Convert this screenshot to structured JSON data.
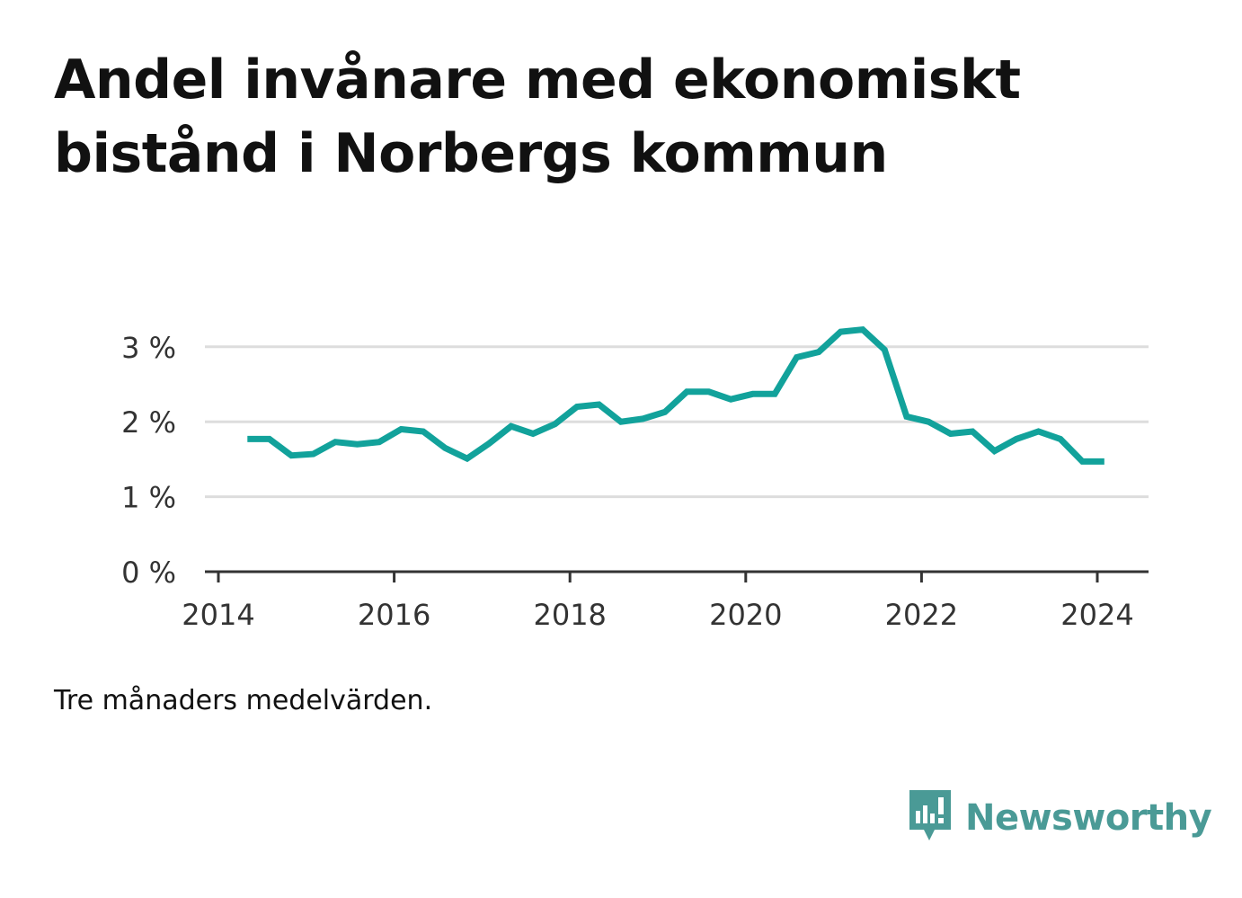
{
  "title": "Andel invånare med ekonomiskt bistånd i Norbergs kommun",
  "note": "Tre månaders medelvärden.",
  "brand": {
    "name": "Newsworthy",
    "icon": "newsworthy-logo-icon",
    "color": "#4a9a96"
  },
  "colors": {
    "line": "#12a29b",
    "grid": "#dddddd",
    "axis": "#333333"
  },
  "chart_data": {
    "type": "line",
    "title": "Andel invånare med ekonomiskt bistånd i Norbergs kommun",
    "xlabel": "",
    "ylabel": "",
    "xlim": [
      2014,
      2024.6
    ],
    "ylim": [
      0,
      3.3
    ],
    "x_ticks": [
      2014,
      2016,
      2018,
      2020,
      2022,
      2024
    ],
    "x_tick_labels": [
      "2014",
      "2016",
      "2018",
      "2020",
      "2022",
      "2024"
    ],
    "y_ticks": [
      0,
      1,
      2,
      3
    ],
    "y_tick_labels": [
      "0 %",
      "1 %",
      "2 %",
      "3 %"
    ],
    "grid": true,
    "series": [
      {
        "x": [
          2014.33,
          2014.58,
          2014.83,
          2015.08,
          2015.33,
          2015.58,
          2015.83,
          2016.08,
          2016.33,
          2016.58,
          2016.83,
          2017.08,
          2017.33,
          2017.58,
          2017.83,
          2018.08,
          2018.33,
          2018.58,
          2018.83,
          2019.08,
          2019.33,
          2019.58,
          2019.83,
          2020.08,
          2020.33,
          2020.58,
          2020.83,
          2021.08,
          2021.33,
          2021.58,
          2021.83,
          2022.08,
          2022.33,
          2022.58,
          2022.83,
          2023.08,
          2023.33,
          2023.58,
          2023.83,
          2024.08
        ],
        "values": [
          1.77,
          1.77,
          1.55,
          1.57,
          1.73,
          1.7,
          1.73,
          1.9,
          1.87,
          1.65,
          1.51,
          1.71,
          1.94,
          1.84,
          1.97,
          2.2,
          2.23,
          2.0,
          2.04,
          2.13,
          2.4,
          2.4,
          2.3,
          2.37,
          2.37,
          2.86,
          2.93,
          3.2,
          3.23,
          2.96,
          2.07,
          2.0,
          1.84,
          1.87,
          1.61,
          1.77,
          1.87,
          1.77,
          1.47,
          1.47
        ]
      }
    ]
  }
}
